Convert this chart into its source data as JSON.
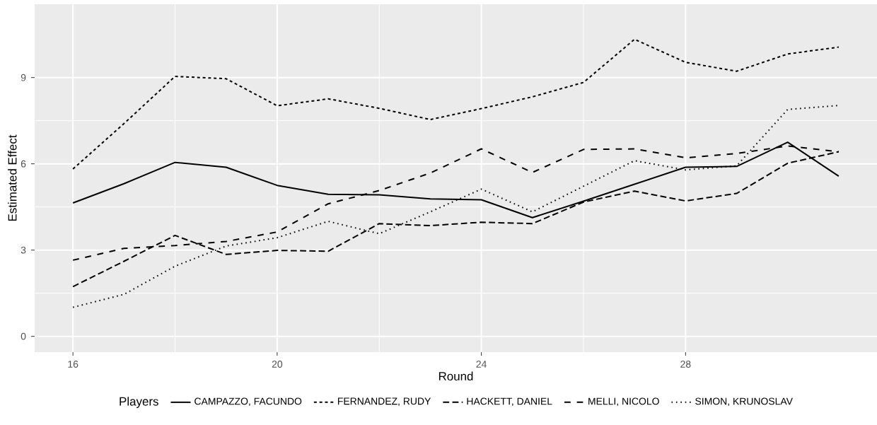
{
  "chart_data": {
    "type": "line",
    "xlabel": "Round",
    "ylabel": "Estimated Effect",
    "legend_title": "Players",
    "x": [
      16,
      17,
      18,
      19,
      20,
      21,
      22,
      23,
      24,
      25,
      26,
      27,
      28,
      29,
      30,
      31
    ],
    "series": [
      {
        "name": "CAMPAZZO, FACUNDO",
        "color": "#000000",
        "line_style": "solid",
        "values": [
          4.64,
          5.31,
          6.05,
          5.88,
          5.25,
          4.94,
          4.92,
          4.78,
          4.75,
          4.13,
          4.7,
          5.29,
          5.88,
          5.91,
          6.75,
          5.57
        ]
      },
      {
        "name": "FERNANDEZ, RUDY",
        "color": "#000000",
        "line_style": "dashed",
        "values": [
          5.82,
          7.4,
          9.04,
          8.96,
          8.02,
          8.26,
          7.93,
          7.54,
          7.92,
          8.33,
          8.83,
          10.33,
          9.53,
          9.22,
          9.82,
          10.06
        ]
      },
      {
        "name": "HACKETT, DANIEL",
        "color": "#000000",
        "line_style": "dashed",
        "values": [
          1.73,
          2.61,
          3.51,
          2.85,
          2.99,
          2.96,
          3.92,
          3.85,
          3.97,
          3.92,
          4.67,
          5.05,
          4.71,
          4.97,
          6.02,
          6.42
        ]
      },
      {
        "name": "MELLI, NICOLO",
        "color": "#000000",
        "line_style": "dashed",
        "values": [
          2.65,
          3.06,
          3.16,
          3.3,
          3.63,
          4.61,
          5.07,
          5.68,
          6.52,
          5.7,
          6.5,
          6.52,
          6.21,
          6.36,
          6.62,
          6.42
        ]
      },
      {
        "name": "SIMON, KRUNOSLAV",
        "color": "#000000",
        "line_style": "dotted",
        "values": [
          1.01,
          1.46,
          2.44,
          3.14,
          3.43,
          4.0,
          3.57,
          4.33,
          5.12,
          4.33,
          5.22,
          6.11,
          5.79,
          5.93,
          7.89,
          8.03
        ]
      }
    ],
    "xlim": [
      15.25,
      31.75
    ],
    "ylim": [
      -0.55,
      11.55
    ],
    "xticks": [
      16,
      20,
      24,
      28
    ],
    "yticks": [
      0,
      3,
      6,
      9
    ],
    "grid": true,
    "legend": "bottom"
  }
}
